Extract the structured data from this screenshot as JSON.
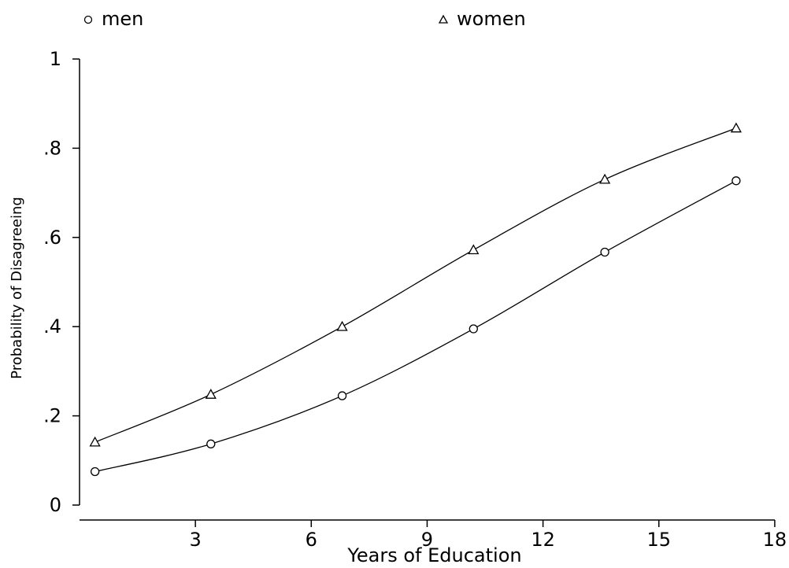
{
  "chart_data": {
    "type": "line",
    "xlabel": "Years of Education",
    "ylabel": "Probability of Disagreeing",
    "xlim": [
      0,
      18
    ],
    "ylim": [
      0,
      1
    ],
    "x_ticks": [
      {
        "value": 3,
        "label": "3"
      },
      {
        "value": 6,
        "label": "6"
      },
      {
        "value": 9,
        "label": "9"
      },
      {
        "value": 12,
        "label": "12"
      },
      {
        "value": 15,
        "label": "15"
      },
      {
        "value": 18,
        "label": "18"
      }
    ],
    "y_ticks": [
      {
        "value": 0,
        "label": "0"
      },
      {
        "value": 0.2,
        "label": ".2"
      },
      {
        "value": 0.4,
        "label": ".4"
      },
      {
        "value": 0.6,
        "label": ".6"
      },
      {
        "value": 0.8,
        "label": ".8"
      },
      {
        "value": 1,
        "label": "1"
      }
    ],
    "grid": false,
    "legend_position": "top",
    "series": [
      {
        "name": "men",
        "marker": "circle",
        "x": [
          0.4,
          3.4,
          6.8,
          10.2,
          13.6,
          17.0
        ],
        "y": [
          0.075,
          0.137,
          0.245,
          0.395,
          0.567,
          0.727
        ]
      },
      {
        "name": "women",
        "marker": "triangle",
        "x": [
          0.4,
          3.4,
          6.8,
          10.2,
          13.6,
          17.0
        ],
        "y": [
          0.141,
          0.248,
          0.4,
          0.572,
          0.73,
          0.845
        ]
      }
    ],
    "line_color": "#000000"
  }
}
